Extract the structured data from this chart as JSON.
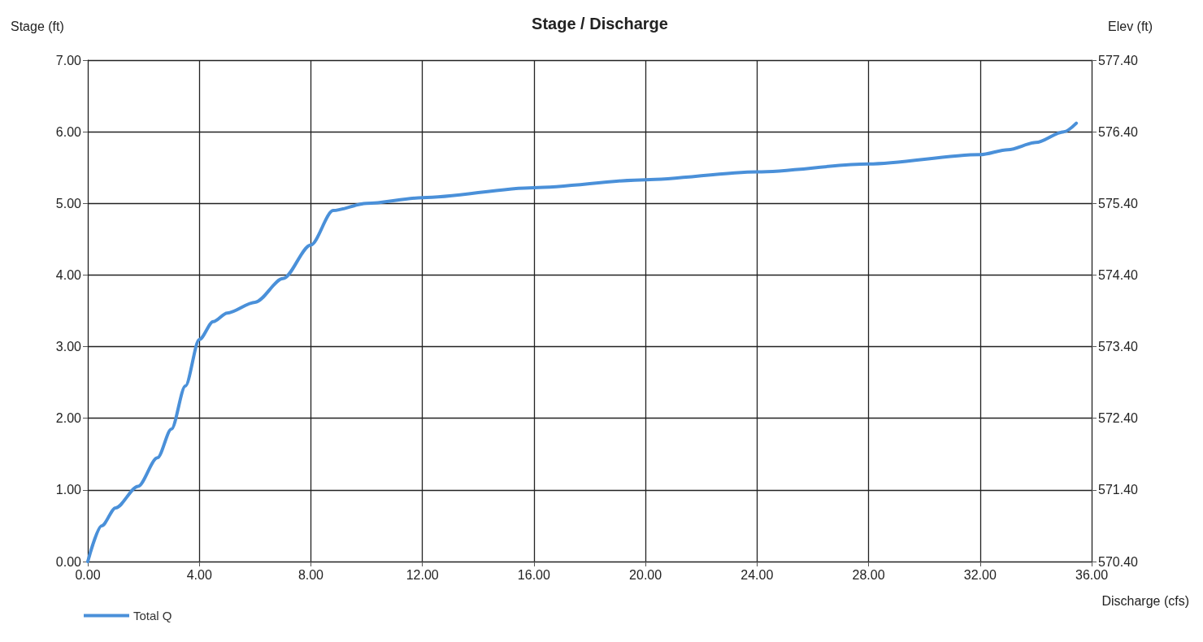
{
  "chart_data": {
    "type": "line",
    "title": "Stage / Discharge",
    "xlabel": "Discharge (cfs)",
    "ylabel": "Stage (ft)",
    "y2label": "Elev (ft)",
    "x": [
      0,
      0.5,
      1.0,
      1.8,
      2.5,
      3.0,
      3.5,
      4.0,
      4.5,
      5.0,
      6.0,
      7.0,
      8.0,
      8.8,
      10,
      12,
      16,
      20,
      24,
      28,
      32,
      33,
      34,
      35,
      35.45
    ],
    "series": [
      {
        "name": "Total Q",
        "color": "#4a90d9",
        "values": [
          0,
          0.5,
          0.75,
          1.05,
          1.45,
          1.85,
          2.45,
          3.1,
          3.35,
          3.47,
          3.62,
          3.95,
          4.42,
          4.9,
          5.0,
          5.08,
          5.22,
          5.33,
          5.44,
          5.55,
          5.68,
          5.75,
          5.85,
          6.0,
          6.12
        ]
      }
    ],
    "xlim": [
      0,
      36
    ],
    "xticks": [
      {
        "value": 0,
        "label": "0.00"
      },
      {
        "value": 4,
        "label": "4.00"
      },
      {
        "value": 8,
        "label": "8.00"
      },
      {
        "value": 12,
        "label": "12.00"
      },
      {
        "value": 16,
        "label": "16.00"
      },
      {
        "value": 20,
        "label": "20.00"
      },
      {
        "value": 24,
        "label": "24.00"
      },
      {
        "value": 28,
        "label": "28.00"
      },
      {
        "value": 32,
        "label": "32.00"
      },
      {
        "value": 36,
        "label": "36.00"
      }
    ],
    "ylim": [
      0,
      7
    ],
    "yticks": [
      {
        "value": 0,
        "label": "0.00"
      },
      {
        "value": 1,
        "label": "1.00"
      },
      {
        "value": 2,
        "label": "2.00"
      },
      {
        "value": 3,
        "label": "3.00"
      },
      {
        "value": 4,
        "label": "4.00"
      },
      {
        "value": 5,
        "label": "5.00"
      },
      {
        "value": 6,
        "label": "6.00"
      },
      {
        "value": 7,
        "label": "7.00"
      }
    ],
    "y2lim": [
      570.4,
      577.4
    ],
    "y2ticks": [
      {
        "value": 570.4,
        "label": "570.40"
      },
      {
        "value": 571.4,
        "label": "571.40"
      },
      {
        "value": 572.4,
        "label": "572.40"
      },
      {
        "value": 573.4,
        "label": "573.40"
      },
      {
        "value": 574.4,
        "label": "574.40"
      },
      {
        "value": 575.4,
        "label": "575.40"
      },
      {
        "value": 576.4,
        "label": "576.40"
      },
      {
        "value": 577.4,
        "label": "577.40"
      }
    ],
    "grid": true,
    "legend": "bottom left",
    "marker": "none",
    "line_style": "solid"
  }
}
